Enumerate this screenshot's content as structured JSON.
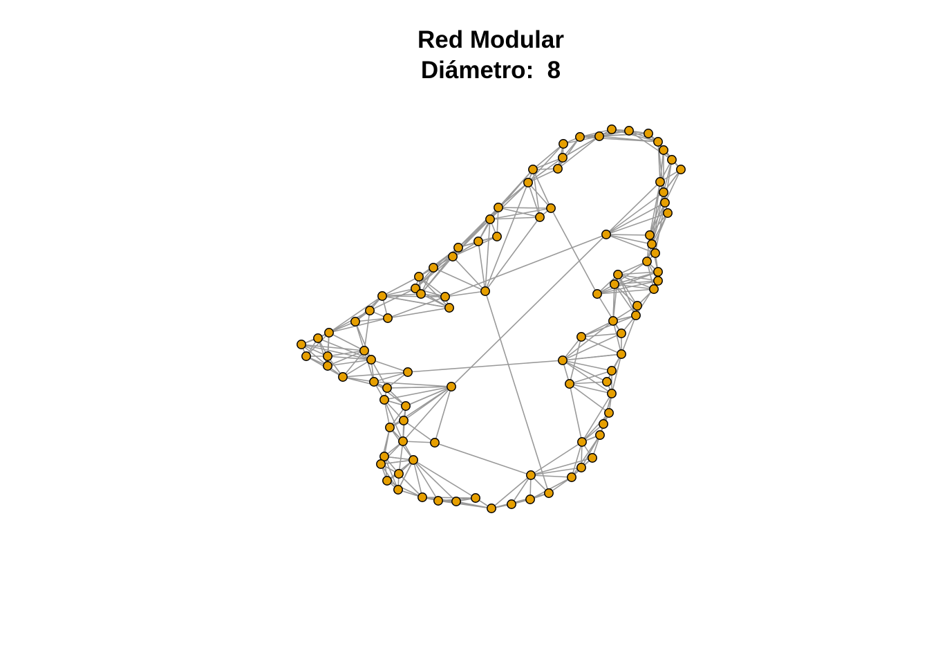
{
  "title": {
    "line1": "Red Modular",
    "line2": "Diámetro:  8"
  },
  "graph": {
    "type": "network",
    "node_color": "#E69F00",
    "node_border_color": "#000000",
    "edge_color": "#999999",
    "node_count": 112
  }
}
